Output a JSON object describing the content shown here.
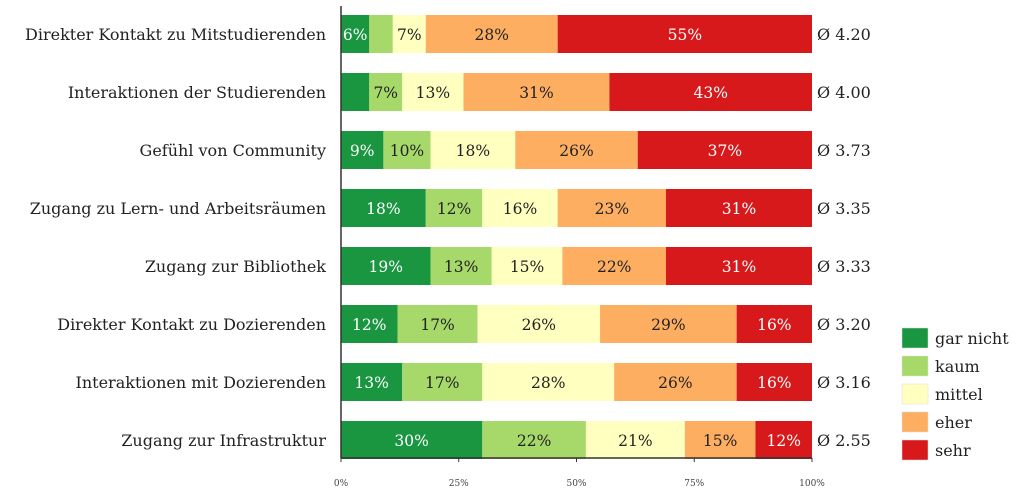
{
  "chart_data": {
    "type": "bar",
    "orientation": "horizontal",
    "stacked": true,
    "title": "",
    "xlabel": "",
    "ylabel": "",
    "xlim": [
      0,
      100
    ],
    "x_ticks": [
      "0%",
      "25%",
      "50%",
      "75%",
      "100%"
    ],
    "x_tick_values": [
      0,
      25,
      50,
      75,
      100
    ],
    "grid": false,
    "legend_position": "bottom-right",
    "categories": [
      "Direkter Kontakt zu Mitstudierenden",
      "Interaktionen der Studierenden",
      "Gefühl von Community",
      "Zugang zu Lern- und Arbeitsräumen",
      "Zugang zur Bibliothek",
      "Direkter Kontakt zu Dozierenden",
      "Interaktionen mit Dozierenden",
      "Zugang zur Infrastruktur"
    ],
    "series": [
      {
        "name": "gar nicht",
        "color": "#1a9641",
        "label_color": "#ffffff",
        "values": [
          6,
          6,
          9,
          18,
          19,
          12,
          13,
          30
        ],
        "labels": [
          "6%",
          "",
          "9%",
          "18%",
          "19%",
          "12%",
          "13%",
          "30%"
        ]
      },
      {
        "name": "kaum",
        "color": "#a6d96a",
        "label_color": "#222222",
        "values": [
          5,
          7,
          10,
          12,
          13,
          17,
          17,
          22
        ],
        "labels": [
          "",
          "7%",
          "10%",
          "12%",
          "13%",
          "17%",
          "17%",
          "22%"
        ]
      },
      {
        "name": "mittel",
        "color": "#ffffc0",
        "label_color": "#222222",
        "values": [
          7,
          13,
          18,
          16,
          15,
          26,
          28,
          21
        ],
        "labels": [
          "7%",
          "13%",
          "18%",
          "16%",
          "15%",
          "26%",
          "28%",
          "21%"
        ]
      },
      {
        "name": "eher",
        "color": "#fdae61",
        "label_color": "#222222",
        "values": [
          28,
          31,
          26,
          23,
          22,
          29,
          26,
          15
        ],
        "labels": [
          "28%",
          "31%",
          "26%",
          "23%",
          "22%",
          "29%",
          "26%",
          "15%"
        ]
      },
      {
        "name": "sehr",
        "color": "#d7191c",
        "label_color": "#ffffff",
        "values": [
          55,
          43,
          37,
          31,
          31,
          16,
          16,
          12
        ],
        "labels": [
          "55%",
          "43%",
          "37%",
          "31%",
          "31%",
          "16%",
          "16%",
          "12%"
        ]
      }
    ],
    "averages": [
      "Ø 4.20",
      "Ø 4.00",
      "Ø 3.73",
      "Ø 3.35",
      "Ø 3.33",
      "Ø 3.20",
      "Ø 3.16",
      "Ø 2.55"
    ]
  }
}
